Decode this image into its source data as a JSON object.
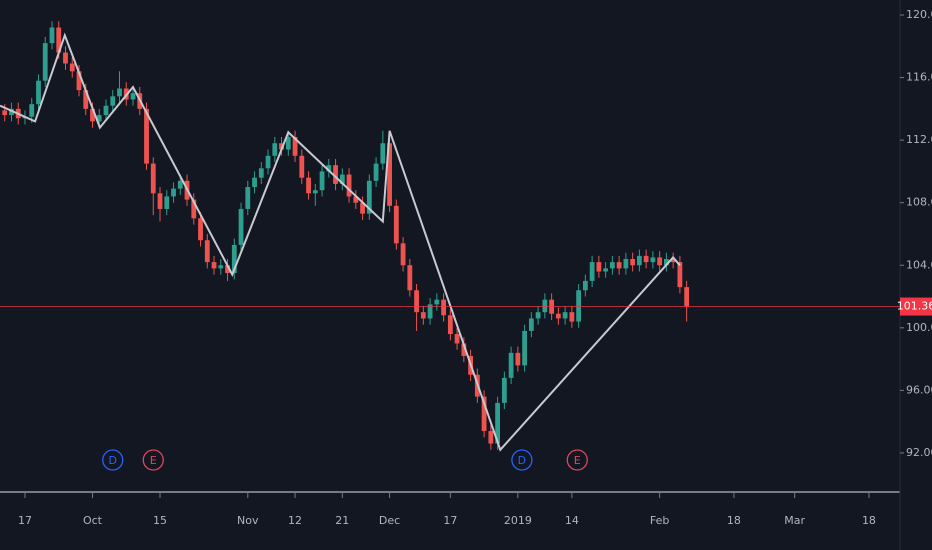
{
  "chart_data": {
    "type": "candlestick",
    "up_color": "#2e9e8e",
    "down_color": "#ef5350",
    "open": [
      113.9,
      113.6,
      114.0,
      113.4,
      113.5,
      114.3,
      115.8,
      118.2,
      119.2,
      117.6,
      116.9,
      116.4,
      115.2,
      114.0,
      113.2,
      113.6,
      114.2,
      114.8,
      115.3,
      114.6,
      115.0,
      114.0,
      110.5,
      108.6,
      107.6,
      108.4,
      108.9,
      109.4,
      108.2,
      107.0,
      105.6,
      104.2,
      103.8,
      104.0,
      103.5,
      105.3,
      107.6,
      109.0,
      109.6,
      110.2,
      111.0,
      111.8,
      111.4,
      112.2,
      111.0,
      109.6,
      108.6,
      108.8,
      110.0,
      110.4,
      109.2,
      109.8,
      108.4,
      108.0,
      107.3,
      109.4,
      110.5,
      111.8,
      107.8,
      105.4,
      104.0,
      102.4,
      101.0,
      100.6,
      101.5,
      101.8,
      100.8,
      99.6,
      99.0,
      98.2,
      97.0,
      95.6,
      93.4,
      92.6,
      95.2,
      96.8,
      98.4,
      97.6,
      99.8,
      100.6,
      101.0,
      101.8,
      100.9,
      100.6,
      101.0,
      100.4,
      102.4,
      103.0,
      104.2,
      103.6,
      103.8,
      104.2,
      103.8,
      104.4,
      104.0,
      104.6,
      104.2,
      104.5,
      104.0,
      104.4,
      104.2,
      102.6
    ],
    "high": [
      114.3,
      114.4,
      114.4,
      113.9,
      114.7,
      116.2,
      118.6,
      119.6,
      119.6,
      118.0,
      117.3,
      116.8,
      115.6,
      114.4,
      114.0,
      114.6,
      115.2,
      116.4,
      115.7,
      115.4,
      115.4,
      114.4,
      110.9,
      109.0,
      108.8,
      109.3,
      109.8,
      109.8,
      108.6,
      107.4,
      106.0,
      104.6,
      104.4,
      104.4,
      105.7,
      108.0,
      109.4,
      110.0,
      110.6,
      111.4,
      112.2,
      112.2,
      112.6,
      112.6,
      111.4,
      110.0,
      109.2,
      110.4,
      110.8,
      110.8,
      110.2,
      110.2,
      108.8,
      108.4,
      109.8,
      110.9,
      112.6,
      112.2,
      108.2,
      105.8,
      104.4,
      102.8,
      101.4,
      101.9,
      102.2,
      102.2,
      101.2,
      100.0,
      99.4,
      98.6,
      97.4,
      96.0,
      93.8,
      95.6,
      97.2,
      98.8,
      98.8,
      100.2,
      101.0,
      101.4,
      102.2,
      102.2,
      101.3,
      101.4,
      101.4,
      102.8,
      103.4,
      104.6,
      104.6,
      104.2,
      104.6,
      104.6,
      104.8,
      104.8,
      105.0,
      105.0,
      104.9,
      104.9,
      104.8,
      104.8,
      104.6,
      103.0
    ],
    "low": [
      113.2,
      113.2,
      113.0,
      113.0,
      113.1,
      113.9,
      115.4,
      117.8,
      117.2,
      116.5,
      116.0,
      114.8,
      113.6,
      112.8,
      112.8,
      113.2,
      113.8,
      114.4,
      114.2,
      114.2,
      113.6,
      110.1,
      107.2,
      106.8,
      107.2,
      108.0,
      108.5,
      107.8,
      106.6,
      105.2,
      103.8,
      103.4,
      103.4,
      103.0,
      103.1,
      104.9,
      107.2,
      108.6,
      109.2,
      109.8,
      110.6,
      111.0,
      111.0,
      110.6,
      109.2,
      108.2,
      107.8,
      108.4,
      109.6,
      108.8,
      108.8,
      108.0,
      107.6,
      106.9,
      106.9,
      109.0,
      110.1,
      107.4,
      105.0,
      103.6,
      102.0,
      99.8,
      100.2,
      100.2,
      101.1,
      100.4,
      99.2,
      98.6,
      97.8,
      96.6,
      95.2,
      93.0,
      92.2,
      92.2,
      94.8,
      96.4,
      97.2,
      97.2,
      99.4,
      100.2,
      100.6,
      100.5,
      100.2,
      100.2,
      100.0,
      100.0,
      102.0,
      102.6,
      103.2,
      103.2,
      103.4,
      103.4,
      103.4,
      103.6,
      103.6,
      103.8,
      103.8,
      103.6,
      103.6,
      103.8,
      102.2,
      100.4
    ],
    "close": [
      113.6,
      114.0,
      113.4,
      113.5,
      114.3,
      115.8,
      118.2,
      119.2,
      117.6,
      116.9,
      116.4,
      115.2,
      114.0,
      113.2,
      113.6,
      114.2,
      114.8,
      115.3,
      114.6,
      115.0,
      114.0,
      110.5,
      108.6,
      107.6,
      108.4,
      108.9,
      109.4,
      108.2,
      107.0,
      105.6,
      104.2,
      103.8,
      104.0,
      103.5,
      105.3,
      107.6,
      109.0,
      109.6,
      110.2,
      111.0,
      111.8,
      111.4,
      112.2,
      111.0,
      109.6,
      108.6,
      108.8,
      110.0,
      110.4,
      109.2,
      109.8,
      108.4,
      108.0,
      107.3,
      109.4,
      110.5,
      111.8,
      107.8,
      105.4,
      104.0,
      102.4,
      101.0,
      100.6,
      101.5,
      101.8,
      100.8,
      99.6,
      99.0,
      98.2,
      97.0,
      95.6,
      93.4,
      92.6,
      95.2,
      96.8,
      98.4,
      97.6,
      99.8,
      100.6,
      101.0,
      101.8,
      100.9,
      100.6,
      101.0,
      100.4,
      102.4,
      103.0,
      104.2,
      103.6,
      103.8,
      104.2,
      103.8,
      104.4,
      104.0,
      104.6,
      104.2,
      104.5,
      104.0,
      104.4,
      104.2,
      102.6,
      101.36
    ],
    "xlim": [
      -0.7,
      132.6
    ],
    "xticks": [
      {
        "value": 3,
        "label": "17"
      },
      {
        "value": 13,
        "label": "Oct"
      },
      {
        "value": 23,
        "label": "15"
      },
      {
        "value": 36,
        "label": "Nov"
      },
      {
        "value": 43,
        "label": "12"
      },
      {
        "value": 50,
        "label": "21"
      },
      {
        "value": 57,
        "label": "Dec"
      },
      {
        "value": 66,
        "label": "17"
      },
      {
        "value": 76,
        "label": "2019"
      },
      {
        "value": 84,
        "label": "14"
      },
      {
        "value": 97,
        "label": "Feb"
      },
      {
        "value": 108,
        "label": "18"
      },
      {
        "value": 117,
        "label": "Mar"
      },
      {
        "value": 128,
        "label": "18"
      }
    ],
    "ylim": [
      89.63,
      120.96
    ],
    "yticks": [
      {
        "value": 92,
        "label": "92.00"
      },
      {
        "value": 96,
        "label": "96.00"
      },
      {
        "value": 100,
        "label": "100.00"
      },
      {
        "value": 104,
        "label": "104.00"
      },
      {
        "value": 108,
        "label": "108.00"
      },
      {
        "value": 112,
        "label": "112.00"
      },
      {
        "value": 116,
        "label": "116.00"
      },
      {
        "value": 120,
        "label": "120.00"
      }
    ],
    "zigzag": {
      "color": "#c8cad0",
      "x": [
        -0.7,
        4.5,
        8.9,
        14.1,
        19,
        33.7,
        42,
        56,
        57,
        73.4,
        99,
        100
      ],
      "values": [
        114.2,
        113.2,
        118.7,
        112.8,
        115.4,
        103.4,
        112.5,
        106.8,
        112.6,
        92.2,
        104.5,
        104.0
      ]
    },
    "price_line": {
      "value": 101.36,
      "color": "#f23645"
    },
    "events": [
      {
        "x": 16,
        "label": "D",
        "color": "#2962ff"
      },
      {
        "x": 22,
        "label": "E",
        "color": "#e0465a"
      },
      {
        "x": 76.6,
        "label": "D",
        "color": "#2962ff"
      },
      {
        "x": 84.8,
        "label": "E",
        "color": "#e0465a"
      }
    ]
  }
}
